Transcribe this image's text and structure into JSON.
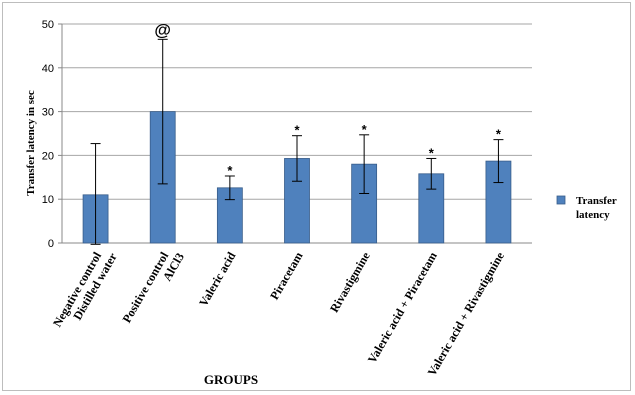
{
  "chart_data": {
    "type": "bar",
    "ylabel": "Transfer latency in sec",
    "xlabel": "GROUPS",
    "ylim": [
      0,
      50
    ],
    "yticks": [
      "0",
      "10",
      "20",
      "30",
      "40",
      "50"
    ],
    "grid": true,
    "legend_position": "right",
    "bar_color": "#4f81bd",
    "categories": [
      [
        "Negative control",
        "Distilled water"
      ],
      [
        "Positive control",
        "AlCl3"
      ],
      [
        "Valeric acid"
      ],
      [
        "Piracetam"
      ],
      [
        "Rivastigmine"
      ],
      [
        "Valeric acid + Piracetam"
      ],
      [
        "Valeric acid + Rivastigmine"
      ]
    ],
    "series": [
      {
        "name": "Transfer latency",
        "values": [
          11,
          30,
          12.6,
          19.3,
          18,
          15.8,
          18.7
        ],
        "error": [
          11.7,
          16.5,
          2.7,
          5.2,
          6.7,
          3.5,
          4.9
        ],
        "markers": [
          "",
          "@",
          "*",
          "*",
          "*",
          "*",
          "*"
        ]
      }
    ]
  }
}
